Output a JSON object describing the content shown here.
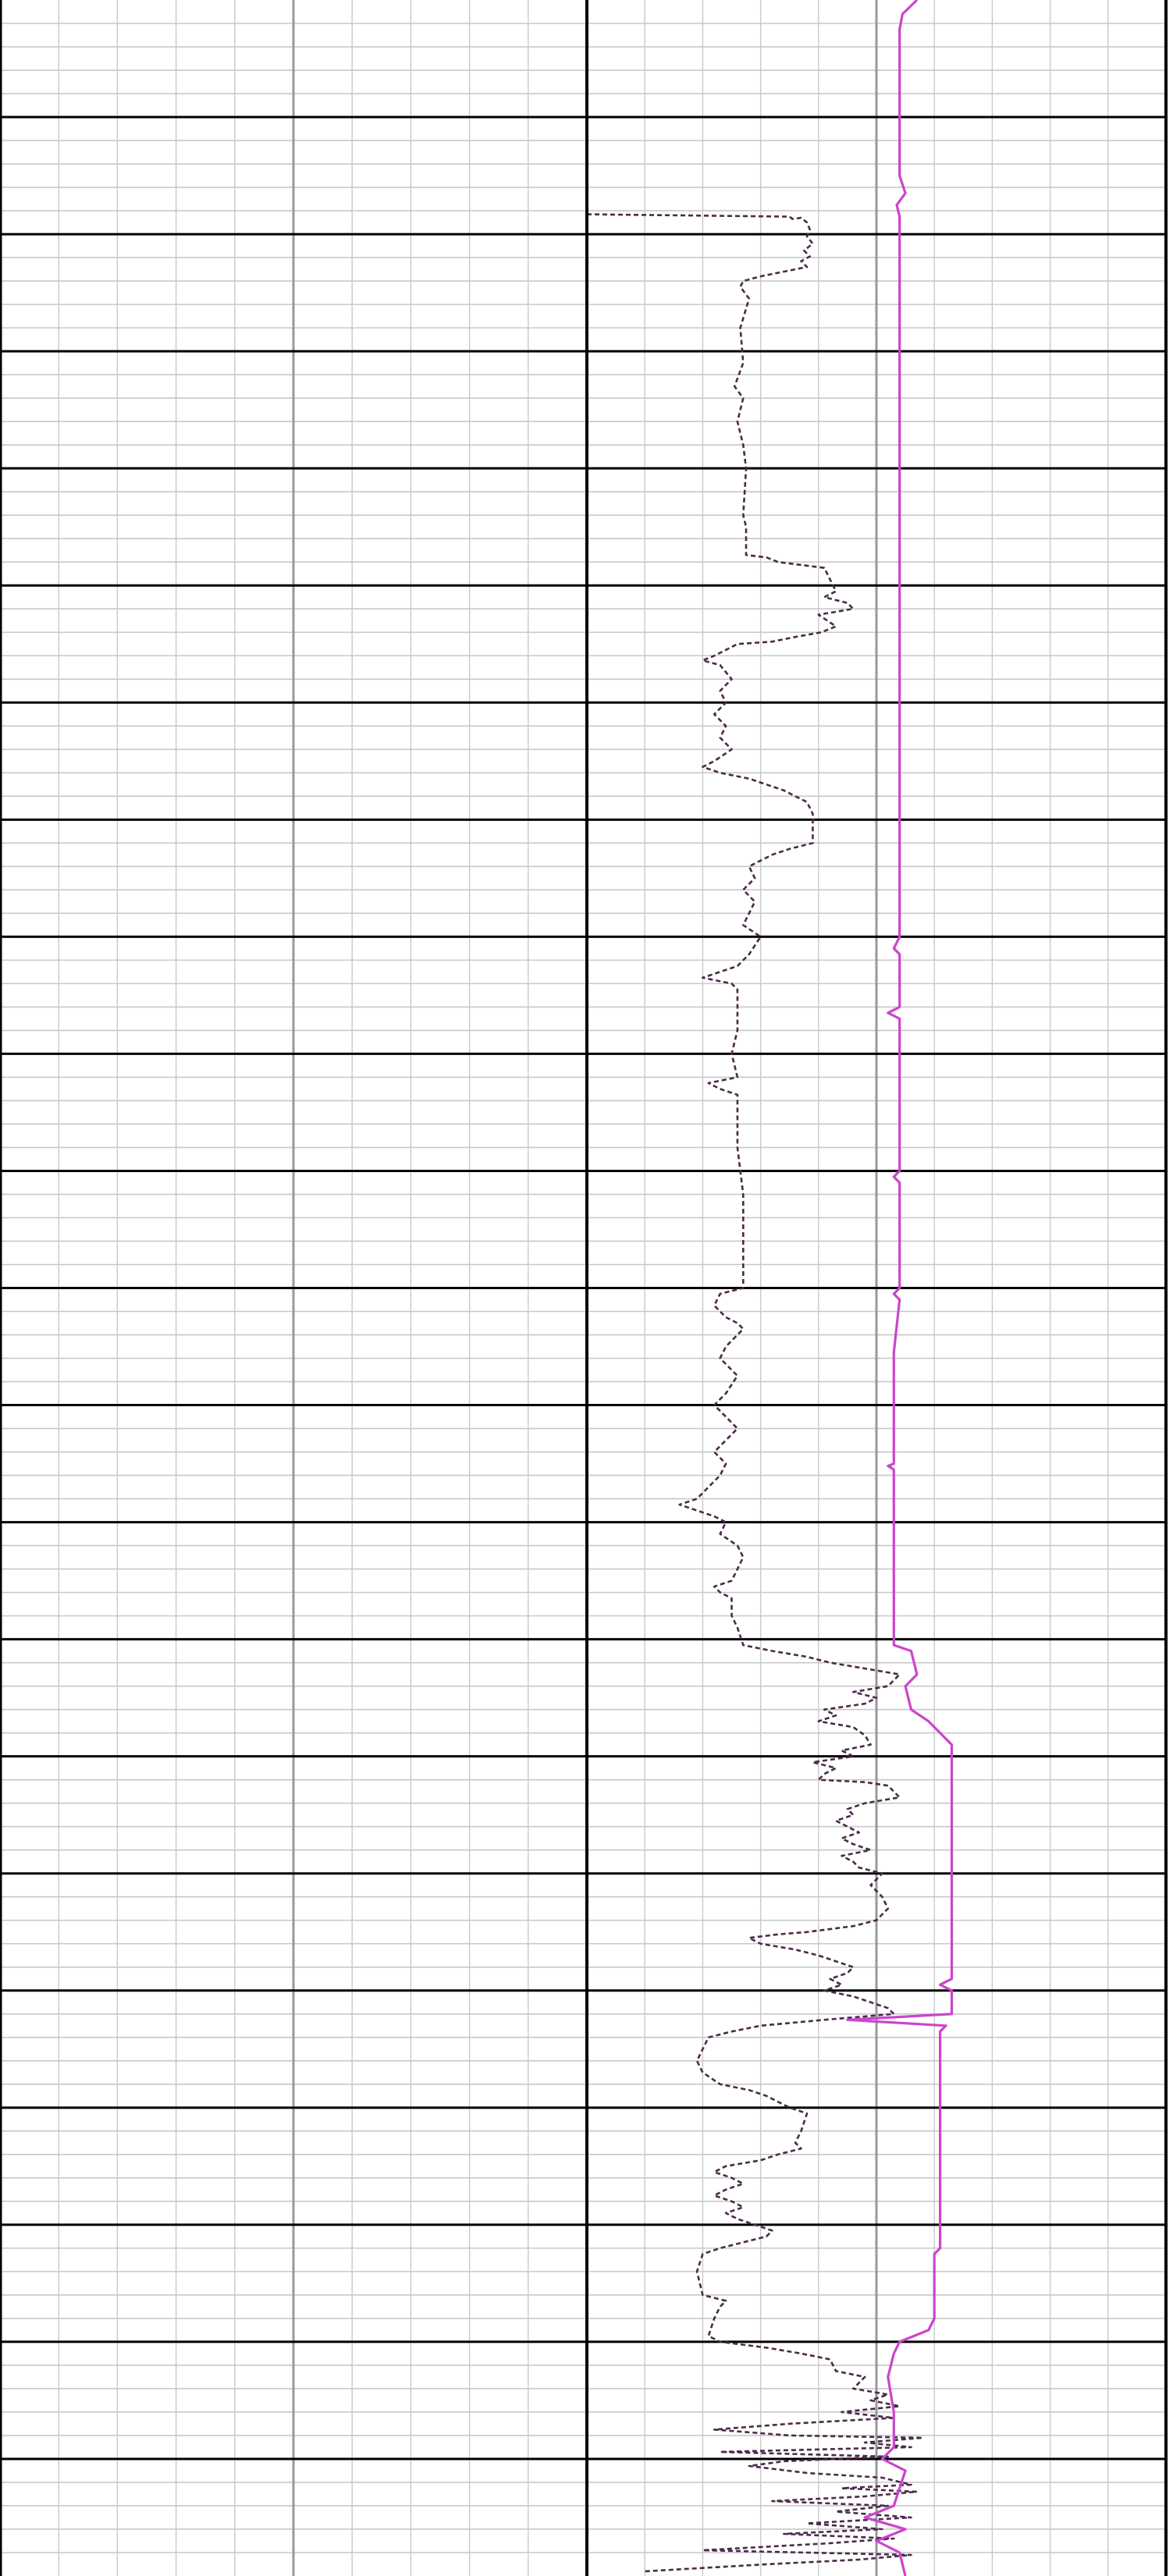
{
  "chart_data": {
    "type": "line",
    "title": "",
    "xlabel": "",
    "ylabel": "",
    "grid": true,
    "tracks": [
      {
        "name": "",
        "x_divisions": 10,
        "y_major_divisions": 22,
        "y_minor_per_major": 5
      },
      {
        "name": "",
        "x_divisions": 10,
        "y_major_divisions": 22,
        "y_minor_per_major": 5
      }
    ],
    "colors": {
      "dashed_curve": "#4a2a4a",
      "solid_curve": "#cc44cc",
      "major_grid": "#000000",
      "minor_grid": "#c8c8c8",
      "track_center_line": "#999999"
    },
    "series": [
      {
        "name": "",
        "style": "dashed",
        "color": "#4a2a4a",
        "x_range": [
          0,
          10
        ],
        "y_range": [
          0,
          22
        ],
        "points": [
          [
            0.0,
            1.83
          ],
          [
            3.5,
            1.85
          ],
          [
            3.55,
            1.87
          ],
          [
            3.7,
            1.86
          ],
          [
            3.8,
            1.9
          ],
          [
            3.85,
            1.96
          ],
          [
            3.8,
            2.02
          ],
          [
            3.9,
            2.08
          ],
          [
            3.75,
            2.14
          ],
          [
            3.85,
            2.19
          ],
          [
            3.7,
            2.23
          ],
          [
            3.8,
            2.28
          ],
          [
            3.4,
            2.32
          ],
          [
            3.0,
            2.36
          ],
          [
            2.7,
            2.4
          ],
          [
            2.65,
            2.45
          ],
          [
            2.8,
            2.55
          ],
          [
            2.65,
            2.8
          ],
          [
            2.7,
            3.1
          ],
          [
            2.55,
            3.3
          ],
          [
            2.7,
            3.4
          ],
          [
            2.6,
            3.6
          ],
          [
            2.7,
            3.8
          ],
          [
            2.75,
            4.0
          ],
          [
            2.7,
            4.4
          ],
          [
            2.75,
            4.5
          ],
          [
            2.75,
            4.74
          ],
          [
            3.1,
            4.76
          ],
          [
            3.3,
            4.8
          ],
          [
            4.1,
            4.85
          ],
          [
            4.2,
            4.95
          ],
          [
            4.3,
            5.05
          ],
          [
            4.1,
            5.1
          ],
          [
            4.5,
            5.15
          ],
          [
            4.6,
            5.2
          ],
          [
            4.0,
            5.25
          ],
          [
            4.15,
            5.3
          ],
          [
            4.3,
            5.35
          ],
          [
            4.05,
            5.4
          ],
          [
            3.6,
            5.44
          ],
          [
            3.2,
            5.48
          ],
          [
            2.6,
            5.5
          ],
          [
            2.4,
            5.55
          ],
          [
            2.2,
            5.6
          ],
          [
            2.0,
            5.64
          ],
          [
            2.3,
            5.68
          ],
          [
            2.5,
            5.8
          ],
          [
            2.3,
            5.9
          ],
          [
            2.4,
            6.0
          ],
          [
            2.2,
            6.1
          ],
          [
            2.4,
            6.2
          ],
          [
            2.3,
            6.3
          ],
          [
            2.5,
            6.4
          ],
          [
            2.2,
            6.5
          ],
          [
            2.0,
            6.55
          ],
          [
            2.3,
            6.6
          ],
          [
            2.5,
            6.62
          ],
          [
            2.8,
            6.65
          ],
          [
            3.1,
            6.7
          ],
          [
            3.4,
            6.75
          ],
          [
            3.6,
            6.8
          ],
          [
            3.8,
            6.85
          ],
          [
            3.9,
            6.95
          ],
          [
            3.9,
            7.2
          ],
          [
            3.5,
            7.25
          ],
          [
            3.2,
            7.3
          ],
          [
            3.0,
            7.35
          ],
          [
            2.8,
            7.4
          ],
          [
            2.9,
            7.5
          ],
          [
            2.7,
            7.6
          ],
          [
            2.9,
            7.7
          ],
          [
            2.8,
            7.8
          ],
          [
            2.7,
            7.9
          ],
          [
            3.0,
            8.0
          ],
          [
            2.8,
            8.15
          ],
          [
            2.6,
            8.25
          ],
          [
            2.0,
            8.35
          ],
          [
            2.5,
            8.4
          ],
          [
            2.6,
            8.45
          ],
          [
            2.6,
            8.8
          ],
          [
            2.5,
            9.0
          ],
          [
            2.6,
            9.2
          ],
          [
            2.1,
            9.25
          ],
          [
            2.3,
            9.3
          ],
          [
            2.6,
            9.35
          ],
          [
            2.6,
            9.8
          ],
          [
            2.7,
            10.2
          ],
          [
            2.7,
            10.5
          ],
          [
            2.7,
            11.0
          ],
          [
            2.3,
            11.05
          ],
          [
            2.2,
            11.15
          ],
          [
            2.4,
            11.25
          ],
          [
            2.6,
            11.3
          ],
          [
            2.7,
            11.35
          ],
          [
            2.4,
            11.5
          ],
          [
            2.3,
            11.6
          ],
          [
            2.5,
            11.7
          ],
          [
            2.6,
            11.75
          ],
          [
            2.4,
            11.9
          ],
          [
            2.2,
            12.0
          ],
          [
            2.4,
            12.1
          ],
          [
            2.6,
            12.2
          ],
          [
            2.4,
            12.3
          ],
          [
            2.2,
            12.4
          ],
          [
            2.4,
            12.5
          ],
          [
            2.3,
            12.6
          ],
          [
            2.1,
            12.7
          ],
          [
            1.9,
            12.8
          ],
          [
            1.6,
            12.85
          ],
          [
            1.9,
            12.9
          ],
          [
            2.2,
            12.95
          ],
          [
            2.4,
            13.0
          ],
          [
            2.3,
            13.1
          ],
          [
            2.6,
            13.2
          ],
          [
            2.7,
            13.3
          ],
          [
            2.6,
            13.4
          ],
          [
            2.5,
            13.5
          ],
          [
            2.2,
            13.55
          ],
          [
            2.3,
            13.6
          ],
          [
            2.5,
            13.65
          ],
          [
            2.5,
            13.8
          ],
          [
            2.6,
            13.9
          ],
          [
            2.7,
            14.05
          ],
          [
            3.2,
            14.1
          ],
          [
            3.8,
            14.15
          ],
          [
            4.2,
            14.2
          ],
          [
            4.8,
            14.25
          ],
          [
            5.4,
            14.3
          ],
          [
            5.2,
            14.4
          ],
          [
            4.6,
            14.45
          ],
          [
            5.0,
            14.5
          ],
          [
            4.8,
            14.55
          ],
          [
            4.1,
            14.6
          ],
          [
            4.3,
            14.65
          ],
          [
            4.0,
            14.7
          ],
          [
            4.6,
            14.75
          ],
          [
            4.8,
            14.82
          ],
          [
            4.9,
            14.9
          ],
          [
            4.4,
            14.95
          ],
          [
            4.6,
            15.0
          ],
          [
            3.9,
            15.05
          ],
          [
            4.3,
            15.1
          ],
          [
            4.1,
            15.15
          ],
          [
            4.0,
            15.2
          ],
          [
            4.8,
            15.22
          ],
          [
            5.2,
            15.25
          ],
          [
            5.4,
            15.35
          ],
          [
            4.8,
            15.4
          ],
          [
            4.5,
            15.45
          ],
          [
            4.6,
            15.5
          ],
          [
            4.3,
            15.55
          ],
          [
            4.5,
            15.6
          ],
          [
            4.7,
            15.65
          ],
          [
            4.4,
            15.7
          ],
          [
            4.6,
            15.75
          ],
          [
            4.9,
            15.8
          ],
          [
            4.4,
            15.85
          ],
          [
            4.6,
            15.9
          ],
          [
            4.7,
            15.95
          ],
          [
            5.1,
            16.0
          ],
          [
            4.9,
            16.1
          ],
          [
            5.1,
            16.2
          ],
          [
            5.2,
            16.3
          ],
          [
            5.0,
            16.4
          ],
          [
            4.6,
            16.45
          ],
          [
            3.8,
            16.5
          ],
          [
            3.3,
            16.52
          ],
          [
            2.8,
            16.55
          ],
          [
            3.0,
            16.6
          ],
          [
            3.6,
            16.65
          ],
          [
            4.0,
            16.7
          ],
          [
            4.3,
            16.75
          ],
          [
            4.6,
            16.8
          ],
          [
            4.5,
            16.85
          ],
          [
            4.2,
            16.9
          ],
          [
            4.4,
            16.95
          ],
          [
            4.1,
            17.0
          ],
          [
            4.6,
            17.05
          ],
          [
            4.9,
            17.1
          ],
          [
            5.2,
            17.15
          ],
          [
            5.3,
            17.2
          ],
          [
            4.1,
            17.25
          ],
          [
            3.0,
            17.3
          ],
          [
            2.5,
            17.35
          ],
          [
            2.1,
            17.4
          ],
          [
            2.0,
            17.5
          ],
          [
            1.9,
            17.6
          ],
          [
            2.0,
            17.7
          ],
          [
            2.3,
            17.8
          ],
          [
            2.8,
            17.85
          ],
          [
            3.1,
            17.9
          ],
          [
            3.3,
            17.95
          ],
          [
            3.5,
            18.0
          ],
          [
            3.8,
            18.05
          ],
          [
            3.7,
            18.2
          ],
          [
            3.6,
            18.3
          ],
          [
            3.7,
            18.35
          ],
          [
            3.3,
            18.4
          ],
          [
            3.0,
            18.45
          ],
          [
            2.4,
            18.5
          ],
          [
            2.2,
            18.55
          ],
          [
            2.5,
            18.6
          ],
          [
            2.7,
            18.65
          ],
          [
            2.4,
            18.7
          ],
          [
            2.2,
            18.75
          ],
          [
            2.5,
            18.8
          ],
          [
            2.7,
            18.85
          ],
          [
            2.4,
            18.9
          ],
          [
            2.6,
            18.95
          ],
          [
            2.9,
            19.0
          ],
          [
            3.2,
            19.05
          ],
          [
            3.1,
            19.1
          ],
          [
            2.7,
            19.15
          ],
          [
            2.3,
            19.2
          ],
          [
            2.0,
            19.25
          ],
          [
            1.9,
            19.4
          ],
          [
            2.0,
            19.6
          ],
          [
            2.4,
            19.65
          ],
          [
            2.3,
            19.7
          ],
          [
            2.2,
            19.8
          ],
          [
            2.1,
            19.95
          ],
          [
            2.3,
            20.0
          ],
          [
            3.1,
            20.05
          ],
          [
            3.7,
            20.1
          ],
          [
            4.2,
            20.15
          ],
          [
            4.3,
            20.25
          ],
          [
            4.8,
            20.3
          ],
          [
            4.6,
            20.4
          ],
          [
            5.2,
            20.45
          ],
          [
            4.9,
            20.5
          ],
          [
            5.4,
            20.55
          ],
          [
            4.4,
            20.6
          ],
          [
            5.3,
            20.65
          ],
          [
            3.5,
            20.7
          ],
          [
            2.2,
            20.75
          ],
          [
            3.5,
            20.8
          ],
          [
            5.8,
            20.82
          ],
          [
            4.8,
            20.86
          ],
          [
            5.6,
            20.9
          ],
          [
            2.3,
            20.94
          ],
          [
            5.2,
            20.98
          ],
          [
            3.4,
            21.02
          ],
          [
            2.8,
            21.06
          ],
          [
            3.8,
            21.12
          ],
          [
            5.1,
            21.16
          ],
          [
            5.6,
            21.22
          ],
          [
            4.4,
            21.25
          ],
          [
            5.7,
            21.28
          ],
          [
            4.8,
            21.32
          ],
          [
            3.2,
            21.36
          ],
          [
            5.2,
            21.4
          ],
          [
            4.3,
            21.45
          ],
          [
            5.6,
            21.5
          ],
          [
            3.8,
            21.55
          ],
          [
            5.1,
            21.6
          ],
          [
            3.4,
            21.64
          ],
          [
            5.3,
            21.68
          ],
          [
            4.2,
            21.72
          ],
          [
            2.0,
            21.78
          ],
          [
            5.6,
            21.82
          ],
          [
            4.7,
            21.86
          ],
          [
            3.1,
            21.9
          ],
          [
            1.0,
            21.96
          ]
        ]
      },
      {
        "name": "",
        "style": "solid",
        "color": "#cc44cc",
        "x_range": [
          0,
          10
        ],
        "y_range": [
          0,
          22
        ],
        "points": [
          [
            5.7,
            0.0
          ],
          [
            5.45,
            0.12
          ],
          [
            5.4,
            0.25
          ],
          [
            5.4,
            1.5
          ],
          [
            5.5,
            1.65
          ],
          [
            5.35,
            1.75
          ],
          [
            5.4,
            1.85
          ],
          [
            5.4,
            8.0
          ],
          [
            5.3,
            8.1
          ],
          [
            5.4,
            8.15
          ],
          [
            5.4,
            8.6
          ],
          [
            5.2,
            8.65
          ],
          [
            5.4,
            8.7
          ],
          [
            5.4,
            10.0
          ],
          [
            5.3,
            10.05
          ],
          [
            5.4,
            10.1
          ],
          [
            5.4,
            11.0
          ],
          [
            5.3,
            11.05
          ],
          [
            5.4,
            11.1
          ],
          [
            5.3,
            11.55
          ],
          [
            5.3,
            12.5
          ],
          [
            5.2,
            12.52
          ],
          [
            5.3,
            12.55
          ],
          [
            5.3,
            14.05
          ],
          [
            5.6,
            14.1
          ],
          [
            5.7,
            14.3
          ],
          [
            5.5,
            14.4
          ],
          [
            5.6,
            14.6
          ],
          [
            5.9,
            14.7
          ],
          [
            6.3,
            14.9
          ],
          [
            6.3,
            16.9
          ],
          [
            6.1,
            16.95
          ],
          [
            6.3,
            17.0
          ],
          [
            6.3,
            17.2
          ],
          [
            4.5,
            17.25
          ],
          [
            6.2,
            17.3
          ],
          [
            6.1,
            17.35
          ],
          [
            6.1,
            19.2
          ],
          [
            6.0,
            19.25
          ],
          [
            6.0,
            19.8
          ],
          [
            5.9,
            19.9
          ],
          [
            5.4,
            20.0
          ],
          [
            5.3,
            20.1
          ],
          [
            5.2,
            20.3
          ],
          [
            5.3,
            20.6
          ],
          [
            5.3,
            20.9
          ],
          [
            5.1,
            21.0
          ],
          [
            5.5,
            21.1
          ],
          [
            5.3,
            21.4
          ],
          [
            4.8,
            21.5
          ],
          [
            5.5,
            21.6
          ],
          [
            5.0,
            21.7
          ],
          [
            5.4,
            21.8
          ],
          [
            5.5,
            22.0
          ]
        ]
      }
    ]
  }
}
